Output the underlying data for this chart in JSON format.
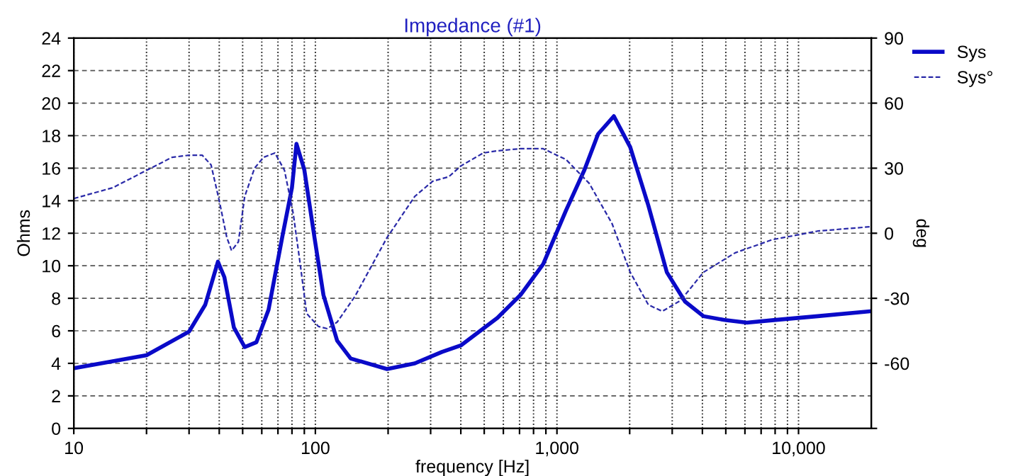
{
  "chart_data": {
    "type": "line",
    "title": "Impedance (#1)",
    "xlabel": "frequency [Hz]",
    "ylabel": "Ohms",
    "y2label": "deg",
    "log": "x",
    "grid": true,
    "legend": "top right",
    "xlim": [
      10,
      20000
    ],
    "xticks": [
      10,
      {
        "value": 20,
        "label": null
      },
      {
        "value": 30,
        "label": null
      },
      {
        "value": 40,
        "label": null
      },
      {
        "value": 50,
        "label": null
      },
      {
        "value": 60,
        "label": null
      },
      {
        "value": 70,
        "label": null
      },
      {
        "value": 80,
        "label": null
      },
      {
        "value": 90,
        "label": null
      },
      100,
      {
        "value": 200,
        "label": null
      },
      {
        "value": 300,
        "label": null
      },
      {
        "value": 400,
        "label": null
      },
      {
        "value": 500,
        "label": null
      },
      {
        "value": 600,
        "label": null
      },
      {
        "value": 700,
        "label": null
      },
      {
        "value": 800,
        "label": null
      },
      {
        "value": 900,
        "label": null
      },
      {
        "value": 1000,
        "label": "1,000"
      },
      {
        "value": 2000,
        "label": null
      },
      {
        "value": 3000,
        "label": null
      },
      {
        "value": 4000,
        "label": null
      },
      {
        "value": 5000,
        "label": null
      },
      {
        "value": 6000,
        "label": null
      },
      {
        "value": 7000,
        "label": null
      },
      {
        "value": 8000,
        "label": null
      },
      {
        "value": 9000,
        "label": null
      },
      {
        "value": 10000,
        "label": "10,000"
      }
    ],
    "ylim": [
      0,
      24
    ],
    "yticks": [
      0,
      2,
      4,
      6,
      8,
      10,
      12,
      14,
      16,
      18,
      20,
      22,
      24
    ],
    "y2lim": [
      -90,
      90
    ],
    "y2ticks": [
      {
        "value": -90,
        "label": null
      },
      -60,
      -30,
      0,
      30,
      60,
      90
    ],
    "series": [
      {
        "name": "Sys",
        "color": "#0a0ac8",
        "line_style": "solid",
        "x": [
          10,
          20,
          30,
          35,
          39.5,
          42,
          46,
          51,
          57,
          64,
          73,
          80,
          83.5,
          90,
          99,
          108,
          123,
          140,
          198,
          258,
          334,
          400,
          567,
          706,
          877,
          1090,
          1300,
          1480,
          1720,
          2010,
          2390,
          2850,
          3390,
          4040,
          5020,
          6110,
          7770,
          12000,
          19800
        ],
        "values": [
          3.7,
          4.5,
          5.95,
          7.6,
          10.25,
          9.3,
          6.2,
          5.0,
          5.3,
          7.3,
          11.8,
          14.8,
          17.5,
          15.9,
          11.8,
          8.2,
          5.4,
          4.3,
          3.65,
          4.0,
          4.7,
          5.1,
          6.8,
          8.2,
          10.1,
          13.4,
          15.9,
          18.1,
          19.2,
          17.3,
          13.7,
          9.6,
          7.8,
          6.9,
          6.65,
          6.5,
          6.65,
          6.9,
          7.2
        ]
      },
      {
        "name": "Sys°",
        "color": "#2a2aa8",
        "line_style": "dashed",
        "axis": "y2",
        "x": [
          10,
          14.5,
          20,
          25.5,
          30,
          34,
          37,
          40,
          43,
          45,
          48,
          51,
          56,
          61,
          68,
          74.5,
          81,
          86.5,
          92,
          103,
          112,
          123,
          146,
          198,
          258,
          306,
          356,
          400,
          495,
          567,
          706,
          877,
          1090,
          1360,
          1690,
          2010,
          2390,
          2730,
          3250,
          4040,
          5470,
          7770,
          12000,
          19800
        ],
        "values": [
          16,
          21,
          29,
          35,
          36,
          36,
          31.5,
          15,
          -2,
          -8,
          -4,
          17,
          30,
          35,
          37,
          29,
          9,
          -14,
          -37,
          -43,
          -44,
          -41,
          -29,
          -2,
          17,
          24,
          26,
          31,
          37,
          38,
          39,
          39,
          34,
          23,
          4.5,
          -18,
          -33,
          -36,
          -31,
          -18,
          -9,
          -3,
          1,
          3
        ]
      }
    ]
  }
}
